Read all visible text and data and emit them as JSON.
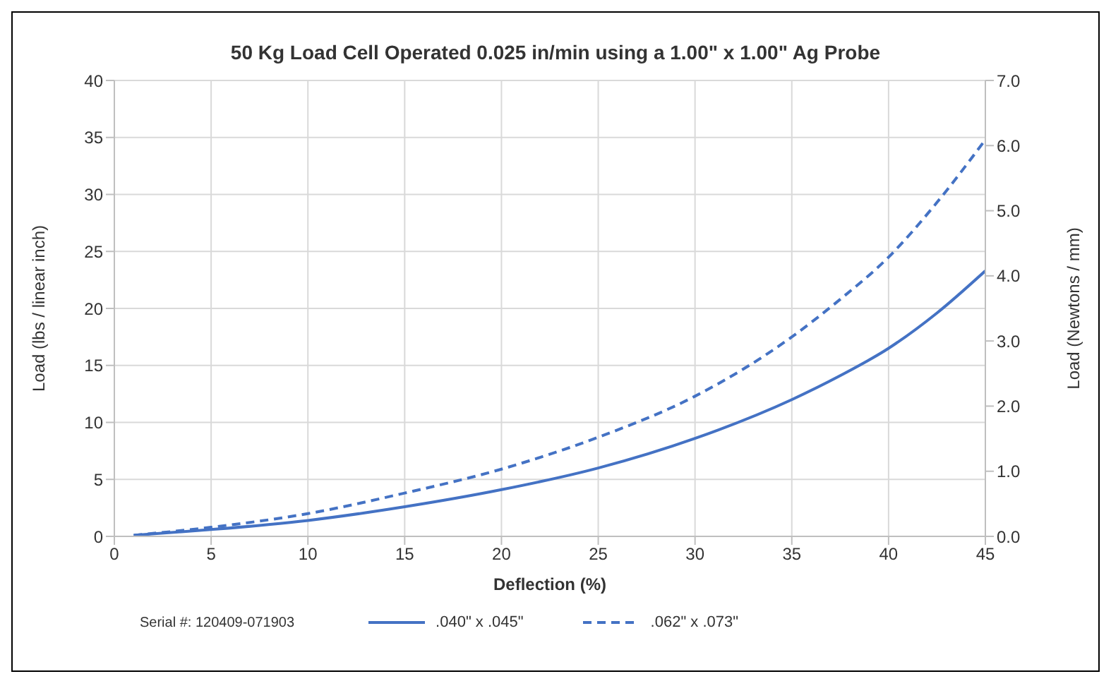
{
  "chart_data": {
    "type": "line",
    "title": "50 Kg Load Cell Operated 0.025 in/min using a 1.00\" x 1.00\" Ag Probe",
    "xlabel": "Deflection (%)",
    "ylabel": "Load (lbs / linear inch)",
    "y2label": "Load (Newtons / mm)",
    "xlim": [
      0,
      45
    ],
    "xticks": [
      0,
      5,
      10,
      15,
      20,
      25,
      30,
      35,
      40,
      45
    ],
    "ylim": [
      0,
      40
    ],
    "yticks": [
      0,
      5,
      10,
      15,
      20,
      25,
      30,
      35,
      40
    ],
    "y2lim": [
      0,
      7
    ],
    "y2ticks": [
      {
        "value": 0,
        "label": "0.0"
      },
      {
        "value": 1,
        "label": "1.0"
      },
      {
        "value": 2,
        "label": "2.0"
      },
      {
        "value": 3,
        "label": "3.0"
      },
      {
        "value": 4,
        "label": "4.0"
      },
      {
        "value": 5,
        "label": "5.0"
      },
      {
        "value": 6,
        "label": "6.0"
      },
      {
        "value": 7,
        "label": "7.0"
      }
    ],
    "x": [
      1,
      5,
      10,
      15,
      20,
      25,
      30,
      35,
      37.5,
      40,
      42.5,
      45
    ],
    "series": [
      {
        "name": ".040\" x .045\"",
        "color": "#4472c4",
        "line_style": "solid",
        "values": [
          0.1,
          0.6,
          1.4,
          2.6,
          4.1,
          6.0,
          8.6,
          12.0,
          14.1,
          16.5,
          19.6,
          23.3
        ]
      },
      {
        "name": ".062\" x .073\"",
        "color": "#4472c4",
        "line_style": "dashed",
        "values": [
          0.1,
          0.8,
          2.0,
          3.8,
          5.9,
          8.7,
          12.3,
          17.5,
          20.8,
          24.5,
          29.3,
          34.8
        ]
      }
    ],
    "grid": true,
    "legend": "bottom",
    "marker": "none",
    "annotations": [
      "Serial #: 120409-071903"
    ]
  }
}
